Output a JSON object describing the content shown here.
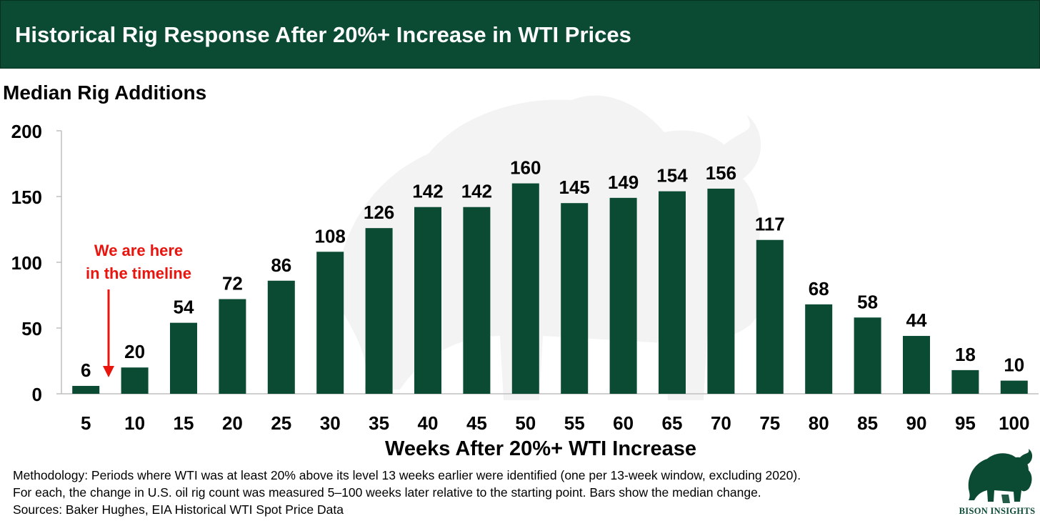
{
  "header": {
    "title": "Historical Rig Response After 20%+ Increase in WTI Prices"
  },
  "chart_data": {
    "type": "bar",
    "title": "Median Rig Additions",
    "xlabel": "Weeks After 20%+ WTI Increase",
    "ylabel": "",
    "ylim": [
      0,
      200
    ],
    "yticks": [
      0,
      50,
      100,
      150,
      200
    ],
    "categories": [
      "5",
      "10",
      "15",
      "20",
      "25",
      "30",
      "35",
      "40",
      "45",
      "50",
      "55",
      "60",
      "65",
      "70",
      "75",
      "80",
      "85",
      "90",
      "95",
      "100"
    ],
    "values": [
      6,
      20,
      54,
      72,
      86,
      108,
      126,
      142,
      142,
      160,
      145,
      149,
      154,
      156,
      117,
      68,
      58,
      44,
      18,
      10
    ],
    "annotation": {
      "line1": "We are here",
      "line2": "in the timeline",
      "between": [
        "5",
        "10"
      ],
      "color": "#e8140d"
    },
    "bar_color": "#0b4a33"
  },
  "methodology": [
    "Methodology: Periods where WTI was at least 20% above its level 13 weeks earlier were identified (one per 13-week window, excluding 2020).",
    "For each, the change in U.S. oil rig count was measured 5–100 weeks later relative to the starting point. Bars show the median change.",
    "Sources: Baker Hughes, EIA Historical WTI Spot Price Data"
  ],
  "logo": {
    "text": "BISON INSIGHTS",
    "icon": "bison-icon"
  },
  "colors": {
    "brand": "#0b4a33",
    "accent": "#e8140d",
    "watermark": "#f2f2f2"
  }
}
